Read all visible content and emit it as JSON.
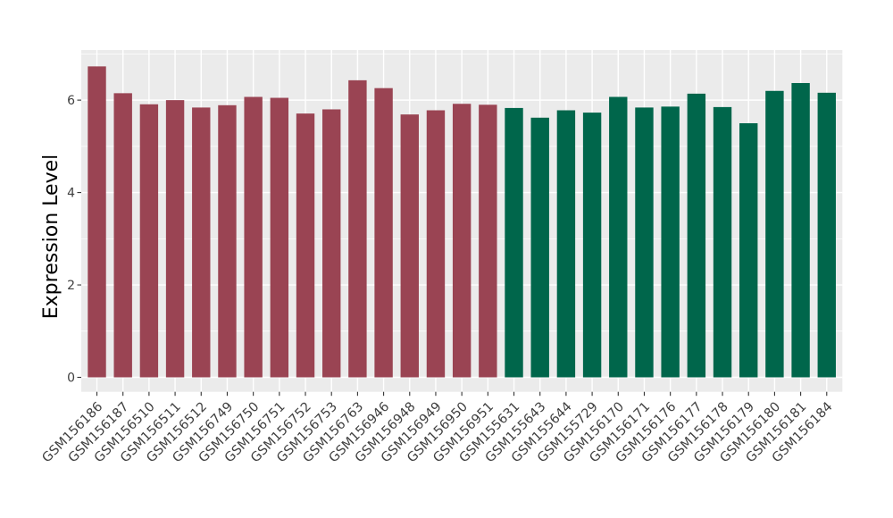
{
  "chart_data": {
    "type": "bar",
    "title": "",
    "xlabel": "",
    "ylabel": "Expression Level",
    "ylim": [
      -0.32,
      7.08
    ],
    "yticks": [
      0,
      2,
      4,
      6
    ],
    "yticks_minor": [
      1,
      3,
      5,
      7
    ],
    "grid": "on",
    "legend_position": "none",
    "panel_background": "#EBEBEB",
    "grid_color": "#FFFFFF",
    "axis_text_color": "#404040",
    "axis_title_color": "#000000",
    "tick_mark_color": "#333333",
    "categories": [
      "GSM156186",
      "GSM156187",
      "GSM156510",
      "GSM156511",
      "GSM156512",
      "GSM156749",
      "GSM156750",
      "GSM156751",
      "GSM156752",
      "GSM156753",
      "GSM156763",
      "GSM156946",
      "GSM156948",
      "GSM156949",
      "GSM156950",
      "GSM156951",
      "GSM155631",
      "GSM155643",
      "GSM155644",
      "GSM155729",
      "GSM156170",
      "GSM156171",
      "GSM156176",
      "GSM156177",
      "GSM156178",
      "GSM156179",
      "GSM156180",
      "GSM156181",
      "GSM156184"
    ],
    "values": [
      6.73,
      6.15,
      5.91,
      6.0,
      5.84,
      5.89,
      6.07,
      6.05,
      5.71,
      5.8,
      6.43,
      6.26,
      5.69,
      5.78,
      5.92,
      5.9,
      5.83,
      5.62,
      5.78,
      5.73,
      6.07,
      5.84,
      5.86,
      6.14,
      5.85,
      5.5,
      6.2,
      6.37,
      6.16
    ],
    "groups": [
      0,
      0,
      0,
      0,
      0,
      0,
      0,
      0,
      0,
      0,
      0,
      0,
      0,
      0,
      0,
      0,
      1,
      1,
      1,
      1,
      1,
      1,
      1,
      1,
      1,
      1,
      1,
      1,
      1
    ],
    "group_colors": [
      "#9A4453",
      "#00664B"
    ]
  }
}
